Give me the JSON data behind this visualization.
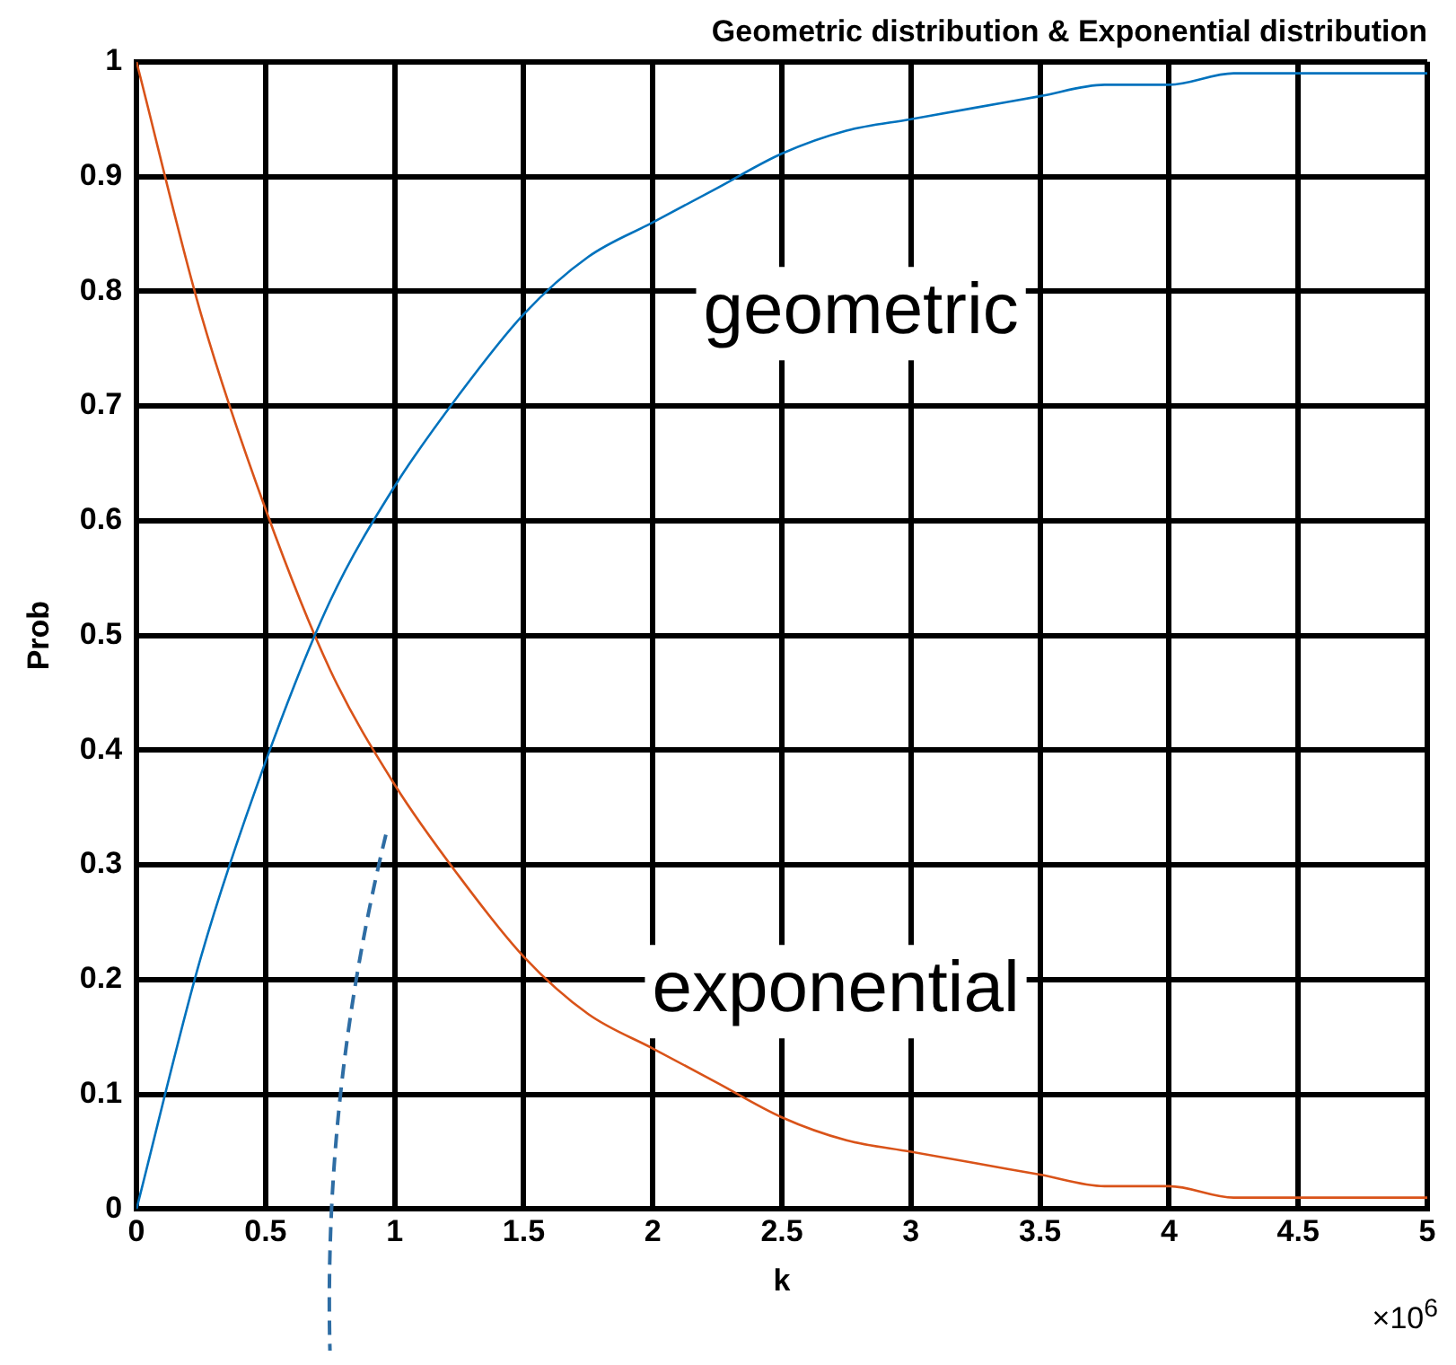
{
  "chart_data": {
    "type": "line",
    "title": "Geometric distribution & Exponential distribution",
    "xlabel": "k",
    "ylabel": "Prob",
    "x": [
      0,
      0.25,
      0.5,
      0.75,
      1,
      1.25,
      1.5,
      1.75,
      2,
      2.25,
      2.5,
      2.75,
      3,
      3.25,
      3.5,
      3.75,
      4,
      4.25,
      4.5,
      4.75,
      5
    ],
    "series": [
      {
        "name": "geometric",
        "color": "#0072bd",
        "values": [
          0,
          0.22,
          0.39,
          0.53,
          0.63,
          0.71,
          0.78,
          0.83,
          0.86,
          0.89,
          0.92,
          0.94,
          0.95,
          0.96,
          0.97,
          0.98,
          0.98,
          0.99,
          0.99,
          0.99,
          0.99
        ]
      },
      {
        "name": "exponential",
        "color": "#d95319",
        "values": [
          1,
          0.78,
          0.61,
          0.47,
          0.37,
          0.29,
          0.22,
          0.17,
          0.14,
          0.11,
          0.08,
          0.06,
          0.05,
          0.04,
          0.03,
          0.02,
          0.02,
          0.01,
          0.01,
          0.01,
          0.01
        ]
      }
    ],
    "xlim": [
      0,
      5
    ],
    "xticks": [
      0,
      0.5,
      1,
      1.5,
      2,
      2.5,
      3,
      3.5,
      4,
      4.5,
      5
    ],
    "ylim": [
      0,
      1
    ],
    "yticks": [
      0,
      0.1,
      0.2,
      0.3,
      0.4,
      0.5,
      0.6,
      0.7,
      0.8,
      0.9,
      1
    ],
    "grid": true,
    "legend": false,
    "marker": "none",
    "line_style": "solid",
    "annotations": [
      "×10$^{6}$"
    ]
  }
}
